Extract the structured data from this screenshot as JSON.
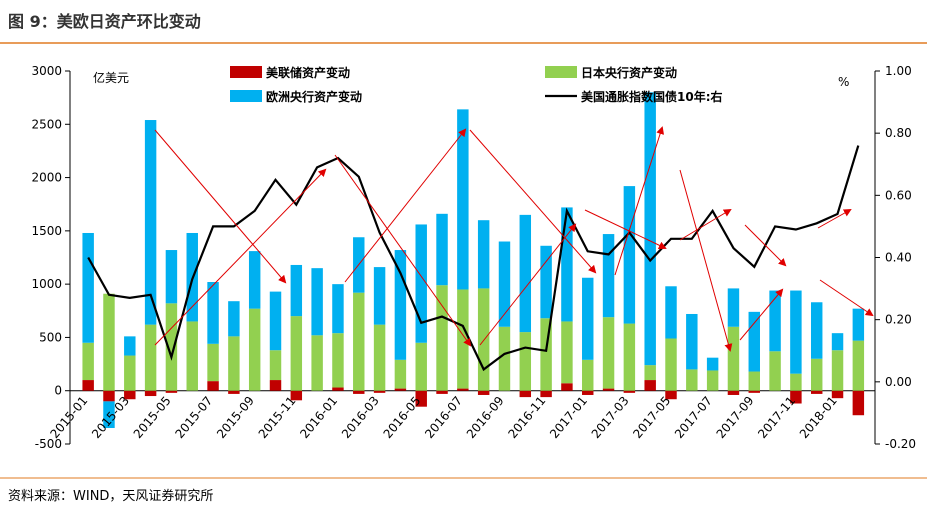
{
  "chart_data": {
    "type": "bar",
    "title": "图 9：美欧日资产环比变动",
    "source": "资料来源：WIND，天风证券研究所",
    "y_label": "亿美元",
    "y2_label": "%",
    "categories": [
      "2015-01",
      null,
      "2015-03",
      null,
      "2015-05",
      null,
      "2015-07",
      null,
      "2015-09",
      null,
      "2015-11",
      null,
      "2016-01",
      null,
      "2016-03",
      null,
      "2016-05",
      null,
      "2016-07",
      null,
      "2016-09",
      null,
      "2016-11",
      null,
      "2017-01",
      null,
      "2017-03",
      null,
      "2017-05",
      null,
      "2017-07",
      null,
      "2017-09",
      null,
      "2017-11",
      null,
      "2018-01",
      null
    ],
    "ylim": [
      -500,
      3000
    ],
    "yticks": [
      -500,
      0,
      500,
      1000,
      1500,
      2000,
      2500,
      3000
    ],
    "y2lim": [
      -0.2,
      1.0
    ],
    "y2ticks": [
      {
        "value": -0.2,
        "label": "-0.20"
      },
      {
        "value": 0,
        "label": "0.00"
      },
      {
        "value": 0.2,
        "label": "0.20"
      },
      {
        "value": 0.4,
        "label": "0.40"
      },
      {
        "value": 0.6,
        "label": "0.60"
      },
      {
        "value": 0.8,
        "label": "0.80"
      },
      {
        "value": 1.0,
        "label": "1.00"
      }
    ],
    "series": [
      {
        "name": "美联储资产变动",
        "color": "#c00000",
        "kind": "bar",
        "values": [
          100,
          -100,
          -80,
          -50,
          -20,
          0,
          90,
          -30,
          0,
          100,
          -90,
          0,
          30,
          -30,
          -20,
          20,
          -150,
          -30,
          20,
          -40,
          0,
          -60,
          -60,
          70,
          -40,
          20,
          -20,
          100,
          -80,
          0,
          0,
          -40,
          -20,
          0,
          -120,
          -30,
          -70,
          -230
        ]
      },
      {
        "name": "日本央行资产变动",
        "color": "#92d050",
        "kind": "bar",
        "values": [
          350,
          910,
          330,
          620,
          820,
          650,
          350,
          510,
          770,
          280,
          700,
          520,
          510,
          920,
          620,
          270,
          450,
          990,
          930,
          960,
          600,
          550,
          680,
          580,
          290,
          670,
          630,
          140,
          490,
          200,
          190,
          600,
          180,
          370,
          160,
          300,
          380,
          470
        ]
      },
      {
        "name": "欧洲央行资产变动",
        "color": "#00b0f0",
        "kind": "bar",
        "values": [
          1030,
          -250,
          180,
          1920,
          500,
          830,
          580,
          330,
          540,
          550,
          480,
          630,
          460,
          520,
          540,
          1030,
          1110,
          670,
          1690,
          640,
          800,
          1100,
          680,
          1070,
          770,
          780,
          1290,
          2560,
          490,
          520,
          120,
          360,
          560,
          570,
          780,
          530,
          160,
          300
        ]
      },
      {
        "name": "美国通胀指数国债10年:右",
        "color": "#000000",
        "kind": "line",
        "axis": "y2",
        "values": [
          0.4,
          0.28,
          0.27,
          0.28,
          0.08,
          0.33,
          0.5,
          0.5,
          0.55,
          0.65,
          0.57,
          0.69,
          0.72,
          0.66,
          0.48,
          0.35,
          0.19,
          0.21,
          0.18,
          0.04,
          0.09,
          0.11,
          0.1,
          0.55,
          0.42,
          0.41,
          0.48,
          0.39,
          0.46,
          0.46,
          0.55,
          0.43,
          0.37,
          0.5,
          0.49,
          0.51,
          0.54,
          0.76
        ]
      }
    ]
  }
}
